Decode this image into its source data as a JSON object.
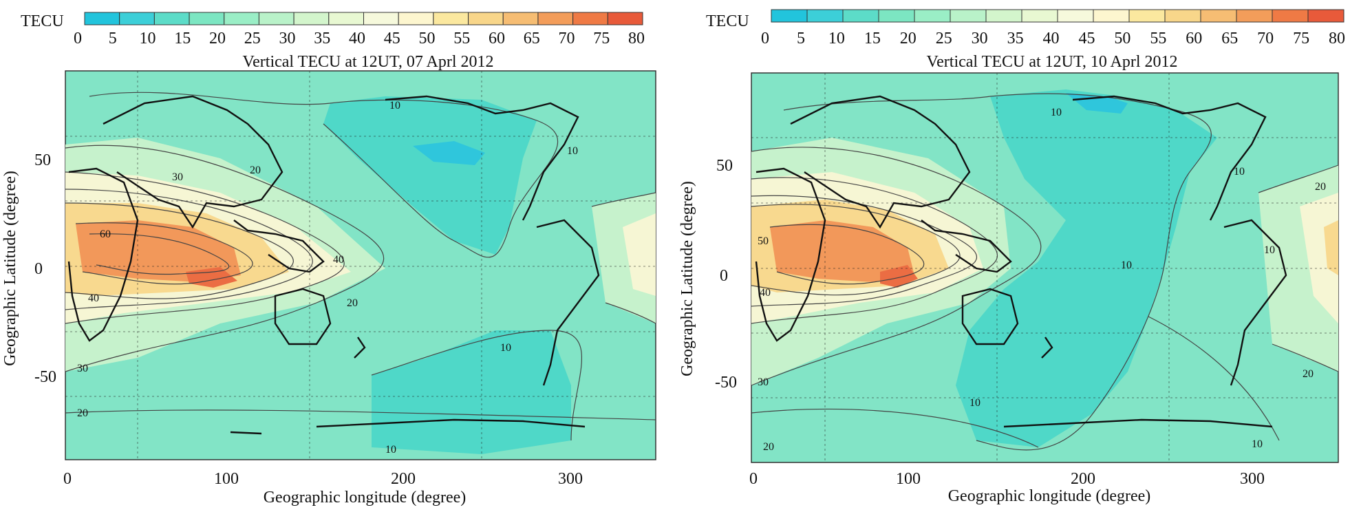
{
  "colorbar": {
    "label": "TECU",
    "ticks": [
      "0",
      "5",
      "10",
      "15",
      "20",
      "25",
      "30",
      "35",
      "40",
      "45",
      "50",
      "55",
      "60",
      "65",
      "70",
      "75",
      "80"
    ],
    "colors": [
      "#22c4dc",
      "#3ccfd8",
      "#5cdcc8",
      "#7ce6c2",
      "#9aeec6",
      "#b9f2c9",
      "#d3f5cc",
      "#e8f8d2",
      "#f6f9dc",
      "#fdf6cf",
      "#fbe89f",
      "#f8d68a",
      "#f6bd73",
      "#f39d5a",
      "#ef7a45",
      "#e85a3a"
    ]
  },
  "maps": [
    {
      "title": "Vertical TECU at 12UT, 07 Aprl 2012",
      "x_label": "Geographic longitude (degree)",
      "y_label": "Geographic Latitude (degree)",
      "x_ticks": [
        "0",
        "100",
        "200",
        "300"
      ],
      "y_ticks": [
        "50",
        "0",
        "-50"
      ],
      "contour_labels": [
        "10",
        "20",
        "30",
        "40",
        "60",
        "20",
        "40",
        "30",
        "10",
        "20",
        "10",
        "10"
      ],
      "colors": {
        "background": "#82e4c6",
        "low": "#4fd8c8",
        "very_low": "#2fc6dc",
        "mid": "#c6f2cc",
        "high": "#f6f6d4",
        "higher": "#f8d98f",
        "peak": "#f2985a",
        "max": "#eb6d43"
      }
    },
    {
      "title": "Vertical TECU at 12UT, 10 Aprl 2012",
      "x_label": "Geographic longitude (degree)",
      "y_label": "Geographic Latitude (degree)",
      "x_ticks": [
        "0",
        "100",
        "200",
        "300"
      ],
      "y_ticks": [
        "50",
        "0",
        "-50"
      ],
      "contour_labels": [
        "10",
        "10",
        "20",
        "10",
        "50",
        "40",
        "10",
        "30",
        "20",
        "10",
        "20",
        "10"
      ],
      "colors": {
        "background": "#82e4c6",
        "low": "#4fd8c8",
        "very_low": "#2fc6dc",
        "mid": "#c6f2cc",
        "high": "#f6f6d4",
        "higher": "#f8d98f",
        "peak": "#f2985a",
        "max": "#eb6d43"
      }
    }
  ]
}
